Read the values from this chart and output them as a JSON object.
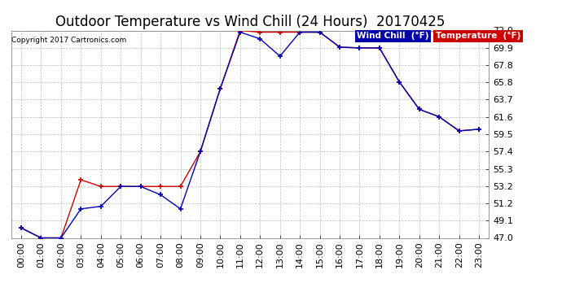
{
  "title": "Outdoor Temperature vs Wind Chill (24 Hours)  20170425",
  "copyright": "Copyright 2017 Cartronics.com",
  "ylim": [
    47.0,
    72.0
  ],
  "yticks": [
    47.0,
    49.1,
    51.2,
    53.2,
    55.3,
    57.4,
    59.5,
    61.6,
    63.7,
    65.8,
    67.8,
    69.9,
    72.0
  ],
  "x_labels": [
    "00:00",
    "01:00",
    "02:00",
    "03:00",
    "04:00",
    "05:00",
    "06:00",
    "07:00",
    "08:00",
    "09:00",
    "10:00",
    "11:00",
    "12:00",
    "13:00",
    "14:00",
    "15:00",
    "16:00",
    "17:00",
    "18:00",
    "19:00",
    "20:00",
    "21:00",
    "22:00",
    "23:00"
  ],
  "temperature": [
    48.2,
    47.0,
    47.0,
    54.0,
    53.2,
    53.2,
    53.2,
    53.2,
    53.2,
    57.4,
    65.0,
    72.0,
    71.8,
    71.8,
    71.8,
    71.8,
    70.0,
    69.9,
    69.9,
    65.8,
    62.5,
    61.6,
    59.9,
    60.1
  ],
  "wind_chill": [
    48.2,
    47.0,
    47.0,
    50.5,
    50.8,
    53.2,
    53.2,
    52.2,
    50.5,
    57.4,
    65.0,
    71.8,
    71.0,
    68.9,
    71.8,
    71.8,
    70.0,
    69.9,
    69.9,
    65.8,
    62.5,
    61.6,
    59.9,
    60.1
  ],
  "temp_color": "#cc0000",
  "wind_chill_color": "#0000bb",
  "background_color": "#ffffff",
  "plot_bg_color": "#ffffff",
  "grid_color": "#bbbbbb",
  "title_fontsize": 12,
  "tick_fontsize": 8,
  "legend_wind_chill_bg": "#0000aa",
  "legend_temp_bg": "#cc0000",
  "legend_text_color": "#ffffff",
  "marker": "+"
}
